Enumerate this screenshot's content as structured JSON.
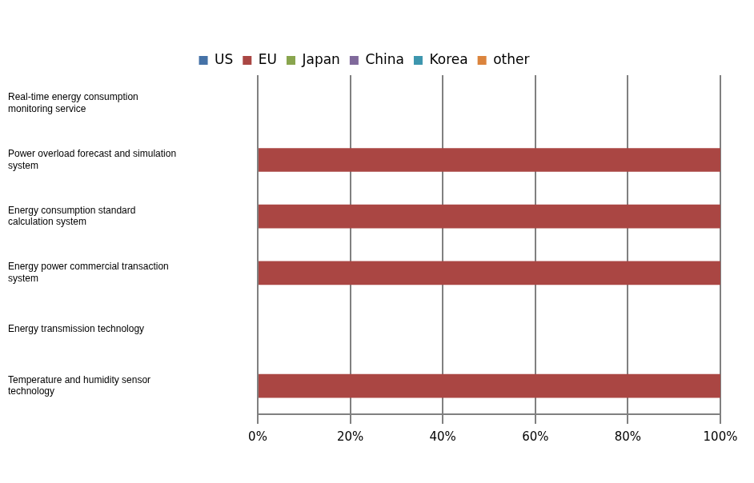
{
  "chart_data": {
    "type": "bar",
    "orientation": "horizontal",
    "stacked": true,
    "grid": true,
    "legend": "top",
    "categories": [
      "Real-time energy consumption monitoring service",
      "Power overload forecast and simulation system",
      "Energy consumption standard calculation system",
      "Energy power commercial transaction system",
      "Energy transmission technology",
      "Temperature and humidity sensor technology"
    ],
    "series": [
      {
        "name": "US",
        "color": "#4572a7",
        "values": [
          0,
          0,
          0,
          0,
          0,
          0
        ]
      },
      {
        "name": "EU",
        "color": "#aa4643",
        "values": [
          0,
          100,
          100,
          100,
          0,
          100
        ]
      },
      {
        "name": "Japan",
        "color": "#89a54e",
        "values": [
          0,
          0,
          0,
          0,
          0,
          0
        ]
      },
      {
        "name": "China",
        "color": "#80699b",
        "values": [
          0,
          0,
          0,
          0,
          0,
          0
        ]
      },
      {
        "name": "Korea",
        "color": "#3d96ae",
        "values": [
          0,
          0,
          0,
          0,
          0,
          0
        ]
      },
      {
        "name": "other",
        "color": "#db843d",
        "values": [
          0,
          0,
          0,
          0,
          0,
          0
        ]
      }
    ],
    "xlim": [
      0,
      100
    ],
    "xticks": [
      {
        "value": 0,
        "label": "0%"
      },
      {
        "value": 20,
        "label": "20%"
      },
      {
        "value": 40,
        "label": "40%"
      },
      {
        "value": 60,
        "label": "60%"
      },
      {
        "value": 80,
        "label": "80%"
      },
      {
        "value": 100,
        "label": "100%"
      }
    ]
  }
}
